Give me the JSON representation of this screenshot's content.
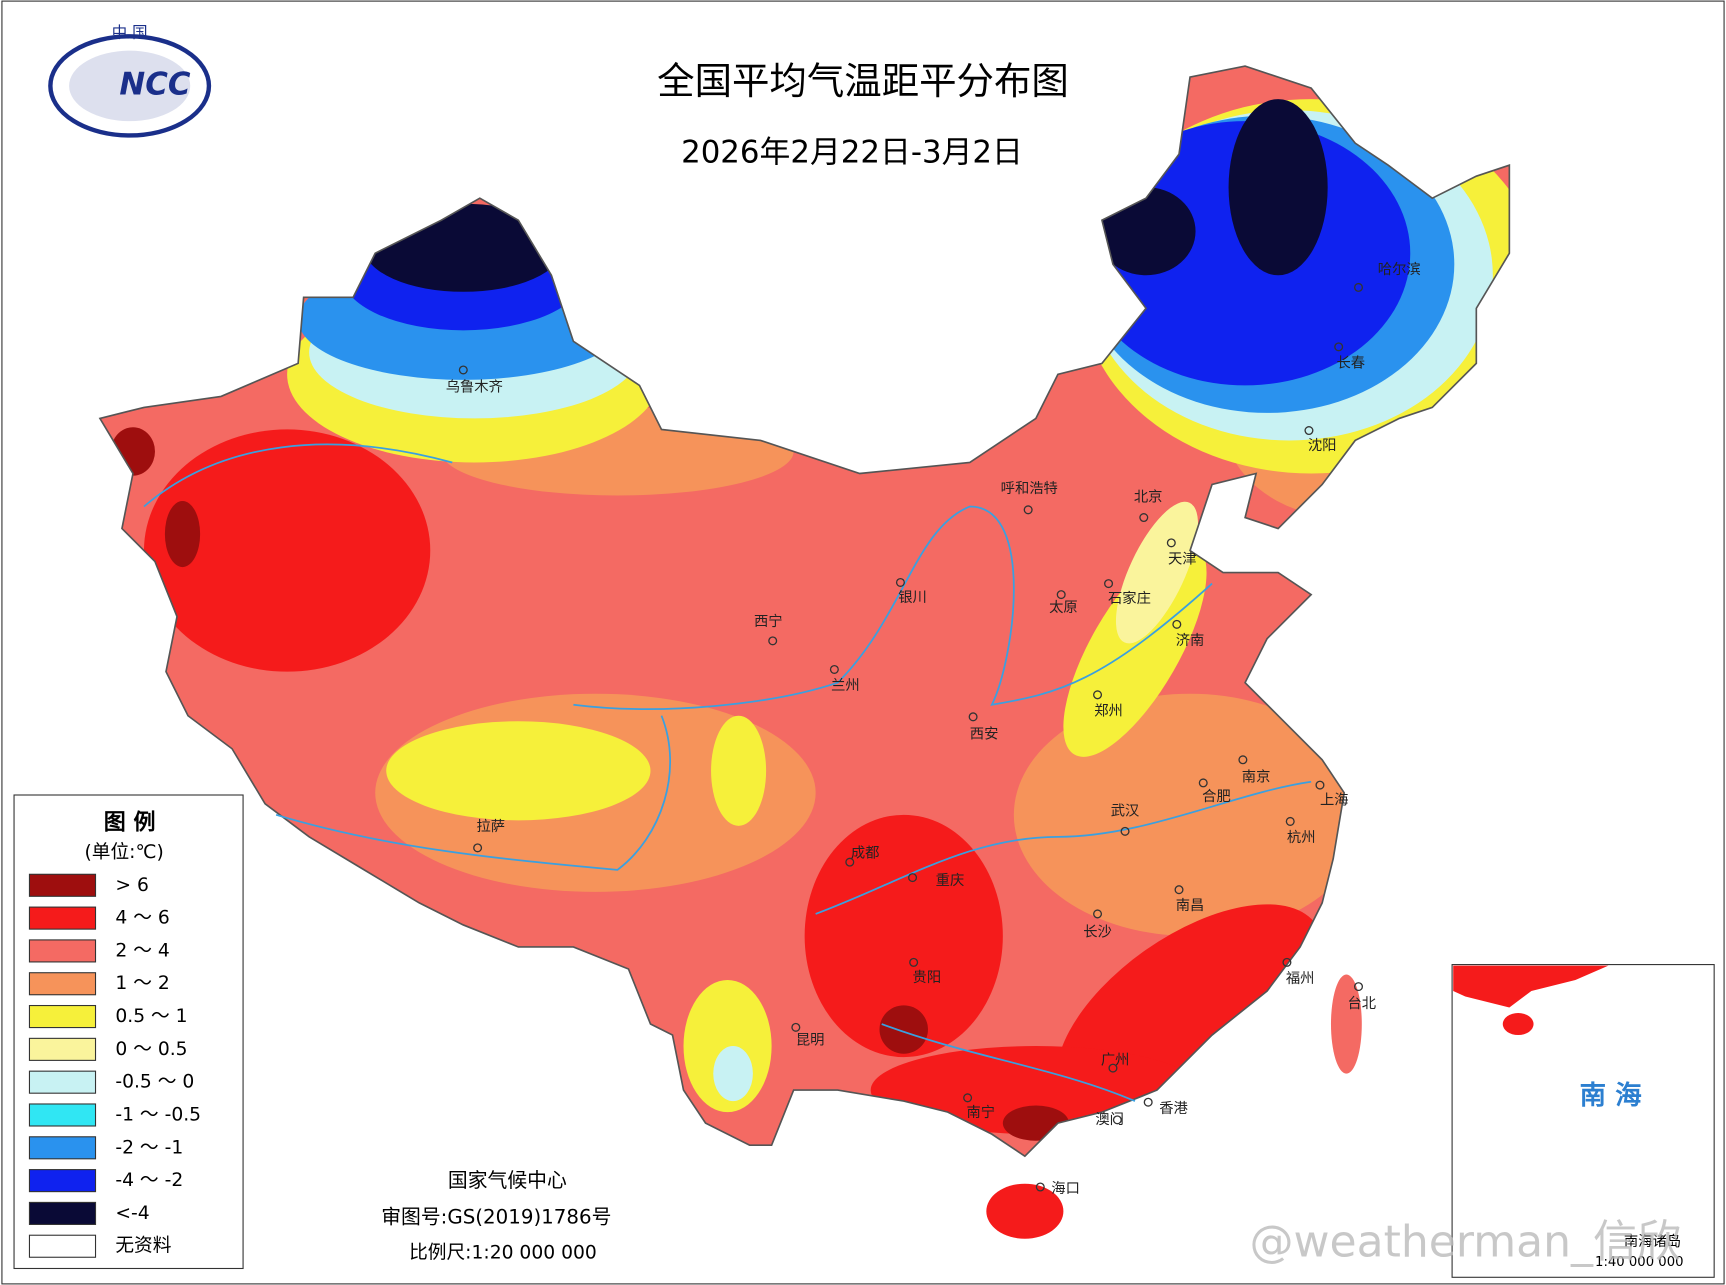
{
  "header": {
    "logo_top": "中 国",
    "logo_name": "NCC",
    "title": "全国平均气温距平分布图",
    "subtitle": "2026年2月22日-3月2日"
  },
  "legend": {
    "title": "图 例",
    "unit": "(单位:℃)",
    "items": [
      {
        "label": "> 6",
        "color": "#9e0e0e"
      },
      {
        "label": "4 ～ 6",
        "color": "#f51b1b"
      },
      {
        "label": "2 ～ 4",
        "color": "#f46a63"
      },
      {
        "label": "1 ～ 2",
        "color": "#f6935a"
      },
      {
        "label": "0.5 ～ 1",
        "color": "#f6f03a"
      },
      {
        "label": "0 ～ 0.5",
        "color": "#faf49c"
      },
      {
        "label": "-0.5 ～ 0",
        "color": "#c8f2f3"
      },
      {
        "label": "-1 ～ -0.5",
        "color": "#30e6f3"
      },
      {
        "label": "-2 ～ -1",
        "color": "#2a92ee"
      },
      {
        "label": "-4 ～ -2",
        "color": "#0f22ef"
      },
      {
        "label": "<-4",
        "color": "#0a0a36"
      },
      {
        "label": "无资料",
        "color": "#ffffff"
      }
    ]
  },
  "cities": [
    "乌鲁木齐",
    "哈尔滨",
    "长春",
    "沈阳",
    "呼和浩特",
    "北京",
    "天津",
    "石家庄",
    "太原",
    "济南",
    "银川",
    "西宁",
    "兰州",
    "西安",
    "郑州",
    "拉萨",
    "成都",
    "重庆",
    "武汉",
    "南京",
    "合肥",
    "上海",
    "杭州",
    "长沙",
    "南昌",
    "贵阳",
    "福州",
    "台北",
    "昆明",
    "广州",
    "南宁",
    "香港",
    "澳门",
    "海口"
  ],
  "footer": {
    "agency": "国家气候中心",
    "review": "审图号:GS(2019)1786号",
    "scale": "比例尺:1:20 000 000"
  },
  "inset": {
    "label": "南 海",
    "islands": "南海诸岛",
    "scale": "1:40 000 000"
  },
  "watermark": "@weatherman_信欣"
}
